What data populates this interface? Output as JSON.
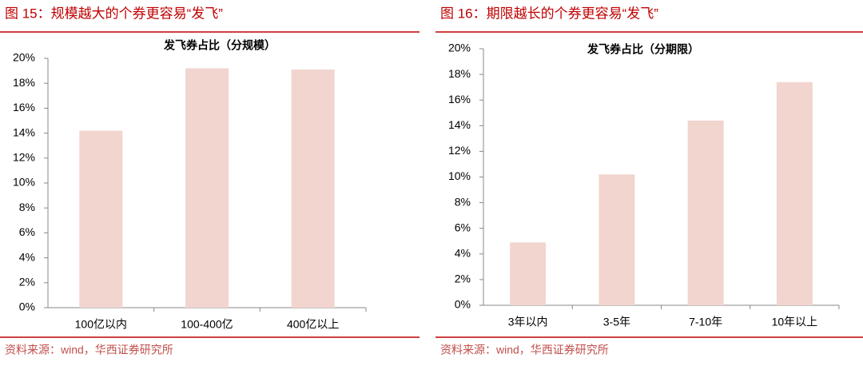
{
  "chart_data": [
    {
      "type": "bar",
      "caption": "图 15：规模越大的个券更容易“发飞”",
      "title": "发飞券占比（分规模）",
      "categories": [
        "100亿以内",
        "100-400亿",
        "400亿以上"
      ],
      "values": [
        14.2,
        19.2,
        19.1
      ],
      "color": "#f2d5cf",
      "ylim": [
        0,
        20
      ],
      "yticks": [
        {
          "value": 0,
          "label": "0%"
        },
        {
          "value": 2,
          "label": "2%"
        },
        {
          "value": 4,
          "label": "4%"
        },
        {
          "value": 6,
          "label": "6%"
        },
        {
          "value": 8,
          "label": "8%"
        },
        {
          "value": 10,
          "label": "10%"
        },
        {
          "value": 12,
          "label": "12%"
        },
        {
          "value": 14,
          "label": "14%"
        },
        {
          "value": 16,
          "label": "16%"
        },
        {
          "value": 18,
          "label": "18%"
        },
        {
          "value": 20,
          "label": "20%"
        }
      ],
      "grid": false,
      "source": "资料来源：wind，华西证券研究所"
    },
    {
      "type": "bar",
      "caption": "图 16：期限越长的个券更容易“发飞”",
      "title": "发飞券占比（分期限）",
      "categories": [
        "3年以内",
        "3-5年",
        "7-10年",
        "10年以上"
      ],
      "values": [
        4.9,
        10.2,
        14.4,
        17.4
      ],
      "color": "#f2d5cf",
      "ylim": [
        0,
        20
      ],
      "yticks": [
        {
          "value": 0,
          "label": "0%"
        },
        {
          "value": 2,
          "label": "2%"
        },
        {
          "value": 4,
          "label": "4%"
        },
        {
          "value": 6,
          "label": "6%"
        },
        {
          "value": 8,
          "label": "8%"
        },
        {
          "value": 10,
          "label": "10%"
        },
        {
          "value": 12,
          "label": "12%"
        },
        {
          "value": 14,
          "label": "14%"
        },
        {
          "value": 16,
          "label": "16%"
        },
        {
          "value": 18,
          "label": "18%"
        },
        {
          "value": 20,
          "label": "20%"
        }
      ],
      "grid": false,
      "source": "资料来源：wind，华西证券研究所"
    }
  ]
}
